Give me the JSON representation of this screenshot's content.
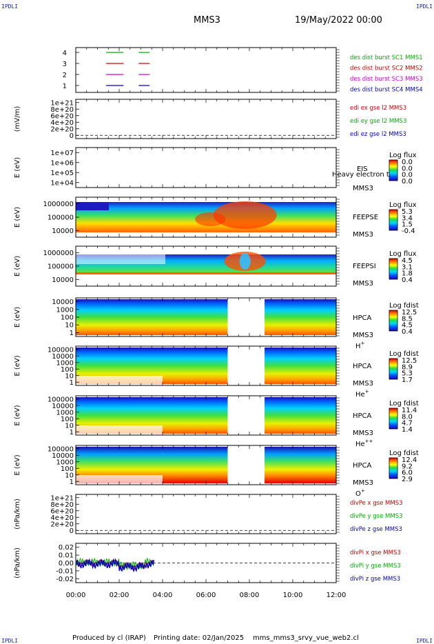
{
  "corner_label": "IPDLI",
  "header": {
    "spacecraft": "MMS3",
    "datetime": "19/May/2022 00:00"
  },
  "footer": {
    "produced_by": "Produced by cl (IRAP)",
    "printing_date": "Printing date: 02/Jan/2025",
    "filename": "mms_mms3_srvy_vue_web2.cl"
  },
  "x_ticks": [
    "00:00",
    "02:00",
    "04:00",
    "06:00",
    "08:00",
    "10:00",
    "12:00"
  ],
  "colors": {
    "red": "#d00000",
    "green": "#00b000",
    "blue": "#0000c0",
    "magenta": "#d000d0",
    "tick_blue": "#0000aa"
  },
  "chart_data": [
    {
      "type": "line",
      "id": "burst",
      "yticks": [
        "4",
        "3",
        "2",
        "1"
      ],
      "series": [
        {
          "name": "des dist burst SC1 MMS1",
          "y": 4,
          "color": "green",
          "segments_hours": [
            [
              1.4,
              2.2
            ],
            [
              2.9,
              3.4
            ]
          ]
        },
        {
          "name": "des dist burst SC2 MMS2",
          "y": 3,
          "color": "red",
          "segments_hours": [
            [
              1.4,
              2.2
            ],
            [
              2.9,
              3.4
            ]
          ]
        },
        {
          "name": "des dist burst SC3 MMS3",
          "y": 2,
          "color": "magenta",
          "segments_hours": [
            [
              1.4,
              2.2
            ],
            [
              2.9,
              3.4
            ]
          ]
        },
        {
          "name": "des dist burst SC4 MMS4",
          "y": 1,
          "color": "blue",
          "segments_hours": [
            [
              1.4,
              2.2
            ],
            [
              2.9,
              3.4
            ]
          ]
        }
      ]
    },
    {
      "type": "line",
      "id": "edi",
      "ylabel": "(mV/m)",
      "yticks": [
        "1e+21",
        "8e+20",
        "6e+20",
        "4e+20",
        "2e+20",
        "0"
      ],
      "legend": [
        {
          "text": "edi ex gse l2 MMS3",
          "color": "red"
        },
        {
          "text": "edi ey gse l2 MMS3",
          "color": "green"
        },
        {
          "text": "edi ez gse l2 MMS3",
          "color": "blue"
        }
      ]
    },
    {
      "type": "heatmap",
      "id": "eis",
      "ylabel": "E (eV)",
      "yticks": [
        "1e+07",
        "1e+06",
        "1e+05",
        "1e+04"
      ],
      "labels": [
        "EIS",
        "MMS3"
      ],
      "overlay": "Heavy electron to",
      "cbar_title": "Log flux",
      "cbar_ticks": [
        "0.0",
        "0.0",
        "0.0",
        "0.0"
      ]
    },
    {
      "type": "heatmap",
      "id": "feepse",
      "ylabel": "E (eV)",
      "yticks": [
        "1000000",
        "100000",
        "10000"
      ],
      "labels": [
        "FEEPSE",
        "MMS3"
      ],
      "cbar_title": "Log flux",
      "cbar_ticks": [
        "5.3",
        "3.4",
        "1.5",
        "-0.4"
      ]
    },
    {
      "type": "heatmap",
      "id": "feepsi",
      "ylabel": "E (eV)",
      "yticks": [
        "1000000",
        "100000",
        "10000"
      ],
      "labels": [
        "FEEPSI",
        "MMS3"
      ],
      "cbar_title": "Log flux",
      "cbar_ticks": [
        "4.5",
        "3.1",
        "1.8",
        "0.4"
      ]
    },
    {
      "type": "heatmap",
      "id": "hpca_h",
      "ylabel": "E (eV)",
      "yticks": [
        "10000",
        "1000",
        "100",
        "10",
        "1"
      ],
      "labels": [
        "HPCA",
        "MMS3"
      ],
      "species": "H",
      "species_sup": "+",
      "cbar_title": "Log fdist",
      "cbar_ticks": [
        "12.5",
        "8.5",
        "4.5",
        "0.4"
      ],
      "gap_hours": [
        7.0,
        8.7
      ]
    },
    {
      "type": "heatmap",
      "id": "hpca_he",
      "ylabel": "E (eV)",
      "yticks": [
        "100000",
        "10000",
        "1000",
        "100",
        "10",
        "1"
      ],
      "labels": [
        "HPCA",
        "MMS3"
      ],
      "species": "He",
      "species_sup": "+",
      "cbar_title": "Log fdist",
      "cbar_ticks": [
        "12.5",
        "8.9",
        "5.3",
        "1.7"
      ],
      "gap_hours": [
        7.0,
        8.7
      ]
    },
    {
      "type": "heatmap",
      "id": "hpca_hepp",
      "ylabel": "E (eV)",
      "yticks": [
        "100000",
        "10000",
        "1000",
        "100",
        "10",
        "1"
      ],
      "labels": [
        "HPCA",
        "MMS3"
      ],
      "species": "He",
      "species_sup": "++",
      "cbar_title": "Log fdist",
      "cbar_ticks": [
        "11.4",
        "8.0",
        "4.7",
        "1.4"
      ],
      "gap_hours": [
        7.0,
        8.7
      ]
    },
    {
      "type": "heatmap",
      "id": "hpca_o",
      "ylabel": "E (eV)",
      "yticks": [
        "100000",
        "10000",
        "1000",
        "100",
        "10",
        "1"
      ],
      "labels": [
        "HPCA",
        "MMS3"
      ],
      "species": "O",
      "species_sup": "+",
      "cbar_title": "Log fdist",
      "cbar_ticks": [
        "12.4",
        "9.2",
        "6.0",
        "2.9"
      ],
      "gap_hours": [
        7.0,
        8.7
      ]
    },
    {
      "type": "line",
      "id": "divpe",
      "ylabel": "(nPa/km)",
      "yticks": [
        "1e+21",
        "8e+20",
        "6e+20",
        "4e+20",
        "2e+20",
        "0"
      ],
      "legend": [
        {
          "text": "divPe x gse MMS3",
          "color": "red"
        },
        {
          "text": "divPe y gse MMS3",
          "color": "green"
        },
        {
          "text": "divPe z gse MMS3",
          "color": "blue"
        }
      ]
    },
    {
      "type": "line",
      "id": "divpi",
      "ylabel": "(nPa/km)",
      "yticks": [
        "0.02",
        "0.01",
        "0.00",
        "-0.01",
        "-0.02"
      ],
      "ylim": [
        -0.025,
        0.025
      ],
      "legend": [
        {
          "text": "divPi x gse MMS3",
          "color": "red"
        },
        {
          "text": "divPi y gse MMS3",
          "color": "green"
        },
        {
          "text": "divPi z gse MMS3",
          "color": "blue"
        }
      ],
      "data_span_hours": [
        0.0,
        3.6
      ]
    }
  ]
}
